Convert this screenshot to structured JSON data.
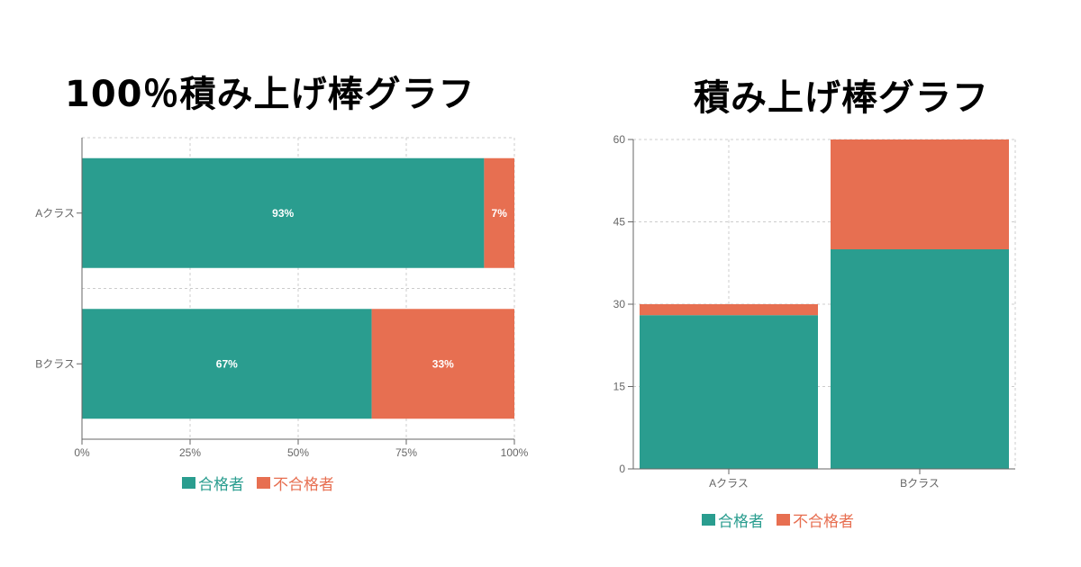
{
  "colors": {
    "pass": "#2a9d8f",
    "fail": "#e76f51"
  },
  "chart_data": [
    {
      "type": "bar",
      "orientation": "horizontal",
      "stacked": "percent",
      "title": "100％積み上げ棒グラフ",
      "categories": [
        "Aクラス",
        "Bクラス"
      ],
      "series": [
        {
          "name": "合格者",
          "values": [
            93,
            67
          ],
          "labels": [
            "93%",
            "67%"
          ]
        },
        {
          "name": "不合格者",
          "values": [
            7,
            33
          ],
          "labels": [
            "7%",
            "33%"
          ]
        }
      ],
      "xlim": [
        0,
        100
      ],
      "xticks": [
        "0%",
        "25%",
        "50%",
        "75%",
        "100%"
      ],
      "grid": true,
      "legend": "bottom"
    },
    {
      "type": "bar",
      "orientation": "vertical",
      "stacked": "absolute",
      "title": "積み上げ棒グラフ",
      "categories": [
        "Aクラス",
        "Bクラス"
      ],
      "series": [
        {
          "name": "合格者",
          "values": [
            28,
            40
          ]
        },
        {
          "name": "不合格者",
          "values": [
            2,
            20
          ]
        }
      ],
      "ylim": [
        0,
        60
      ],
      "yticks": [
        "0",
        "15",
        "30",
        "45",
        "60"
      ],
      "grid": true,
      "legend": "bottom"
    }
  ]
}
